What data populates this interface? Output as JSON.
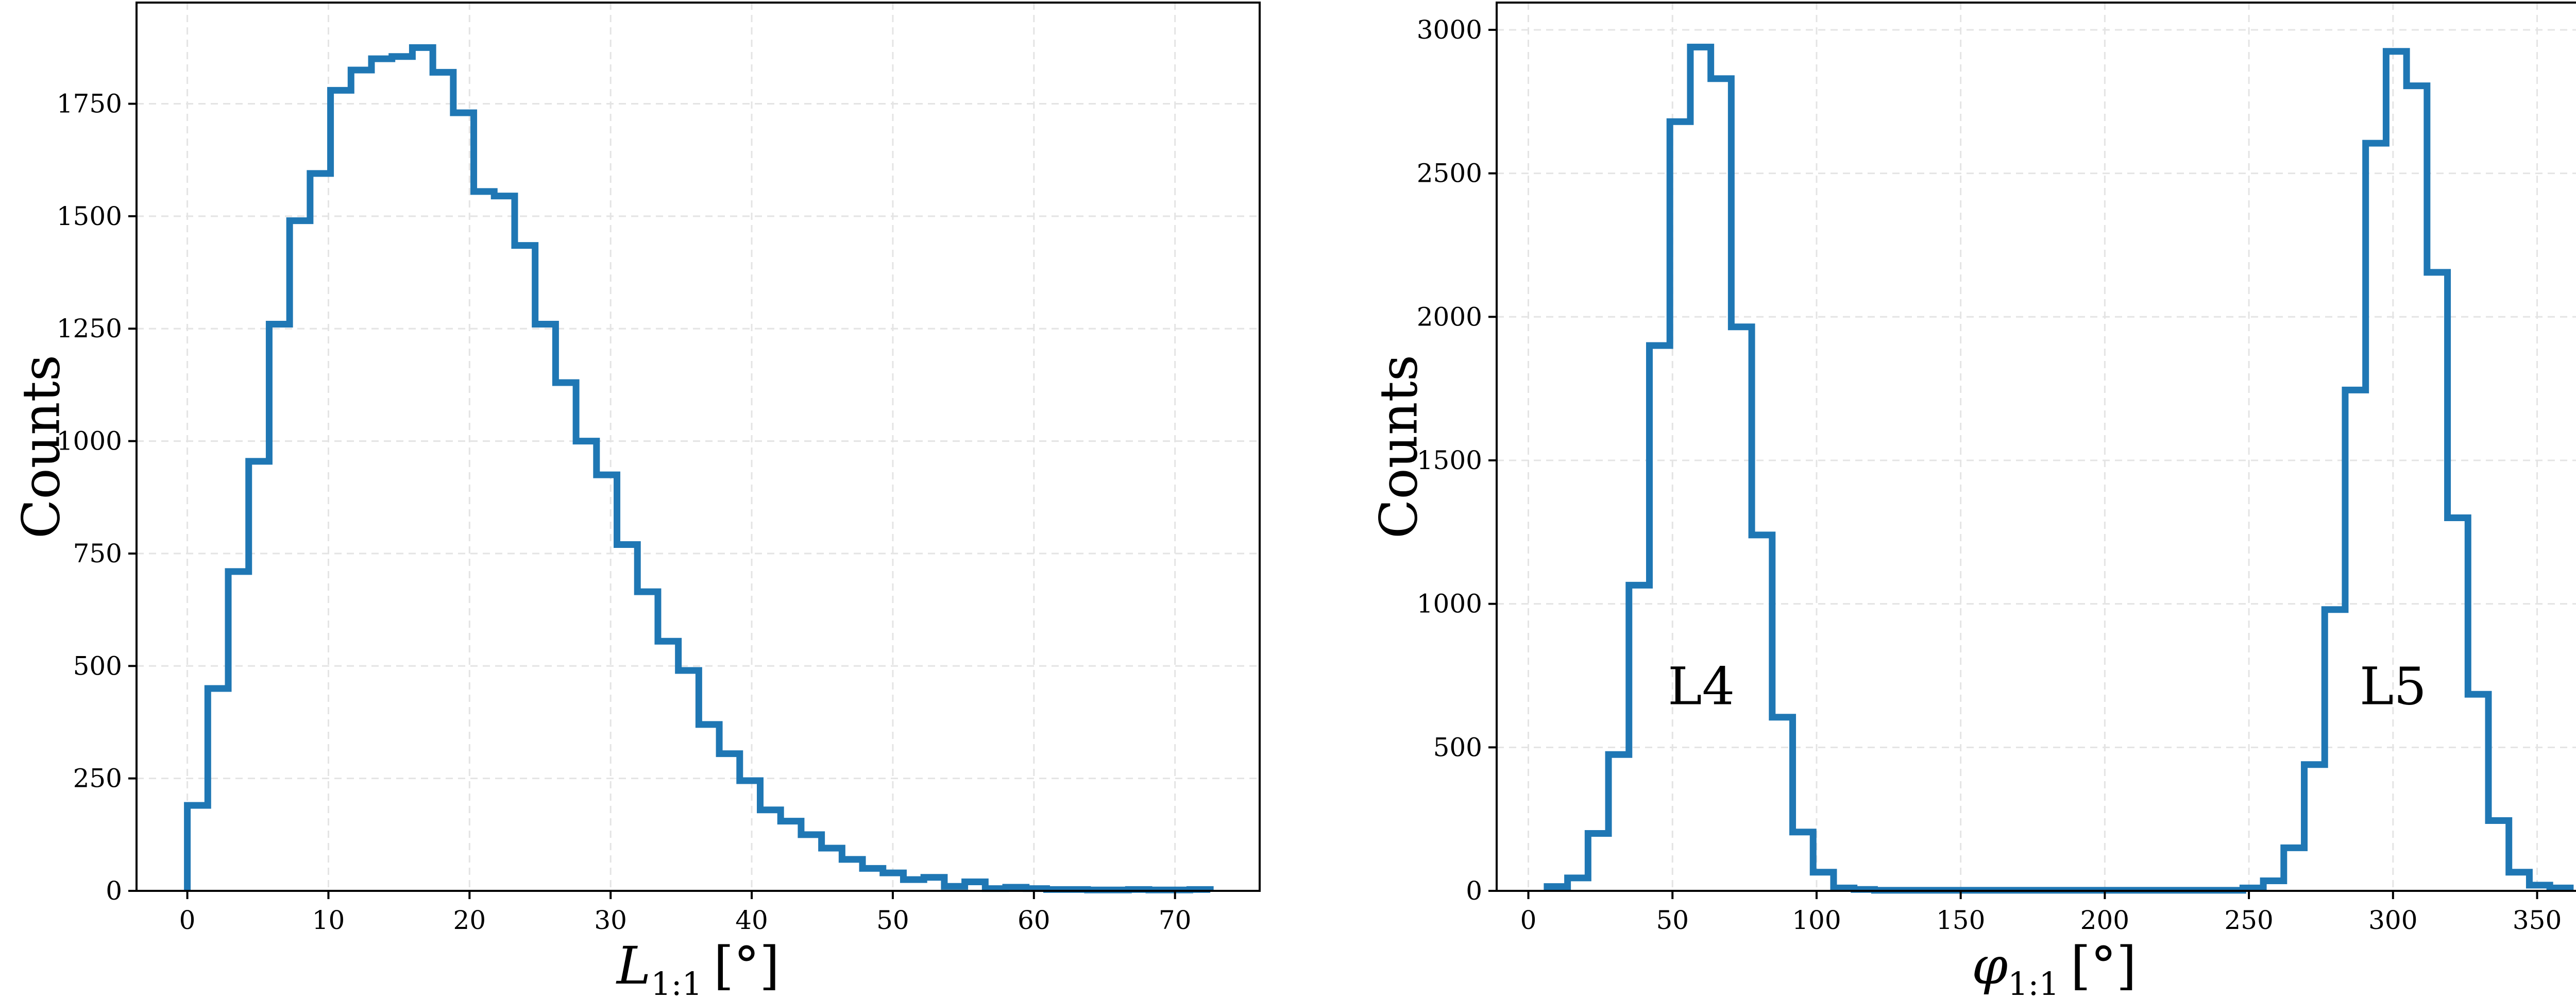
{
  "chart_data": [
    {
      "type": "histogram",
      "xlabel": "L",
      "xlabel_sub": "1:1",
      "xlabel_unit": "[°]",
      "ylabel": "Counts",
      "xlim": [
        -3.6,
        76.0
      ],
      "ylim": [
        0,
        1975
      ],
      "xticks": [
        0,
        10,
        20,
        30,
        40,
        50,
        60,
        70
      ],
      "yticks": [
        0,
        250,
        500,
        750,
        1000,
        1250,
        1500,
        1750
      ],
      "grid": true,
      "bin_edges": [
        0.0,
        1.45,
        2.9,
        4.35,
        5.8,
        7.25,
        8.7,
        10.15,
        11.6,
        13.05,
        14.5,
        15.95,
        17.4,
        18.85,
        20.3,
        21.75,
        23.2,
        24.65,
        26.1,
        27.55,
        29.0,
        30.45,
        31.9,
        33.35,
        34.8,
        36.25,
        37.7,
        39.15,
        40.6,
        42.05,
        43.5,
        44.95,
        46.4,
        47.85,
        49.3,
        50.75,
        52.2,
        53.65,
        55.1,
        56.55,
        58.0,
        59.45,
        60.9,
        62.35,
        63.8,
        65.25,
        66.7,
        68.15,
        69.6,
        71.05,
        72.5
      ],
      "values": [
        190,
        450,
        710,
        955,
        1260,
        1490,
        1595,
        1780,
        1825,
        1850,
        1855,
        1875,
        1820,
        1730,
        1555,
        1545,
        1435,
        1260,
        1130,
        1000,
        925,
        770,
        665,
        555,
        490,
        370,
        305,
        245,
        180,
        155,
        125,
        95,
        70,
        50,
        40,
        25,
        30,
        10,
        20,
        5,
        8,
        5,
        3,
        3,
        2,
        2,
        3,
        2,
        2,
        3
      ]
    },
    {
      "type": "histogram",
      "xlabel": "φ",
      "xlabel_sub": "1:1",
      "xlabel_unit": "[°]",
      "ylabel": "Counts",
      "xlim": [
        -11,
        376
      ],
      "ylim": [
        0,
        3095
      ],
      "xticks": [
        0,
        50,
        100,
        150,
        200,
        250,
        300,
        350
      ],
      "yticks": [
        0,
        500,
        1000,
        1500,
        2000,
        2500,
        3000
      ],
      "grid": true,
      "bin_edges": [
        6.5,
        13.6,
        20.7,
        27.8,
        34.9,
        42.0,
        49.1,
        56.2,
        63.3,
        70.4,
        77.5,
        84.6,
        91.7,
        98.8,
        105.9,
        113.0,
        120.1,
        127.2,
        134.3,
        141.4,
        148.5,
        155.6,
        162.7,
        169.8,
        176.9,
        184.0,
        191.1,
        198.2,
        205.3,
        212.4,
        219.5,
        226.6,
        233.7,
        240.8,
        247.9,
        255.0,
        262.1,
        269.2,
        276.3,
        283.4,
        290.5,
        297.6,
        304.7,
        311.8,
        318.9,
        326.0,
        333.1,
        340.2,
        347.3,
        354.4,
        361.5
      ],
      "values": [
        15,
        45,
        200,
        475,
        1065,
        1900,
        2680,
        2940,
        2830,
        1965,
        1240,
        605,
        205,
        65,
        10,
        5,
        2,
        2,
        2,
        2,
        2,
        2,
        2,
        2,
        2,
        2,
        2,
        2,
        2,
        2,
        2,
        2,
        2,
        2,
        10,
        35,
        150,
        440,
        980,
        1745,
        2605,
        2925,
        2805,
        2155,
        1300,
        685,
        245,
        65,
        20,
        10
      ],
      "annotations": [
        {
          "text": "L4",
          "x": 60,
          "y": 650
        },
        {
          "text": "L5",
          "x": 300,
          "y": 650
        }
      ]
    }
  ],
  "colors": {
    "series": "#1f77b4",
    "grid": "#e4e4e4",
    "axes": "#000000"
  }
}
